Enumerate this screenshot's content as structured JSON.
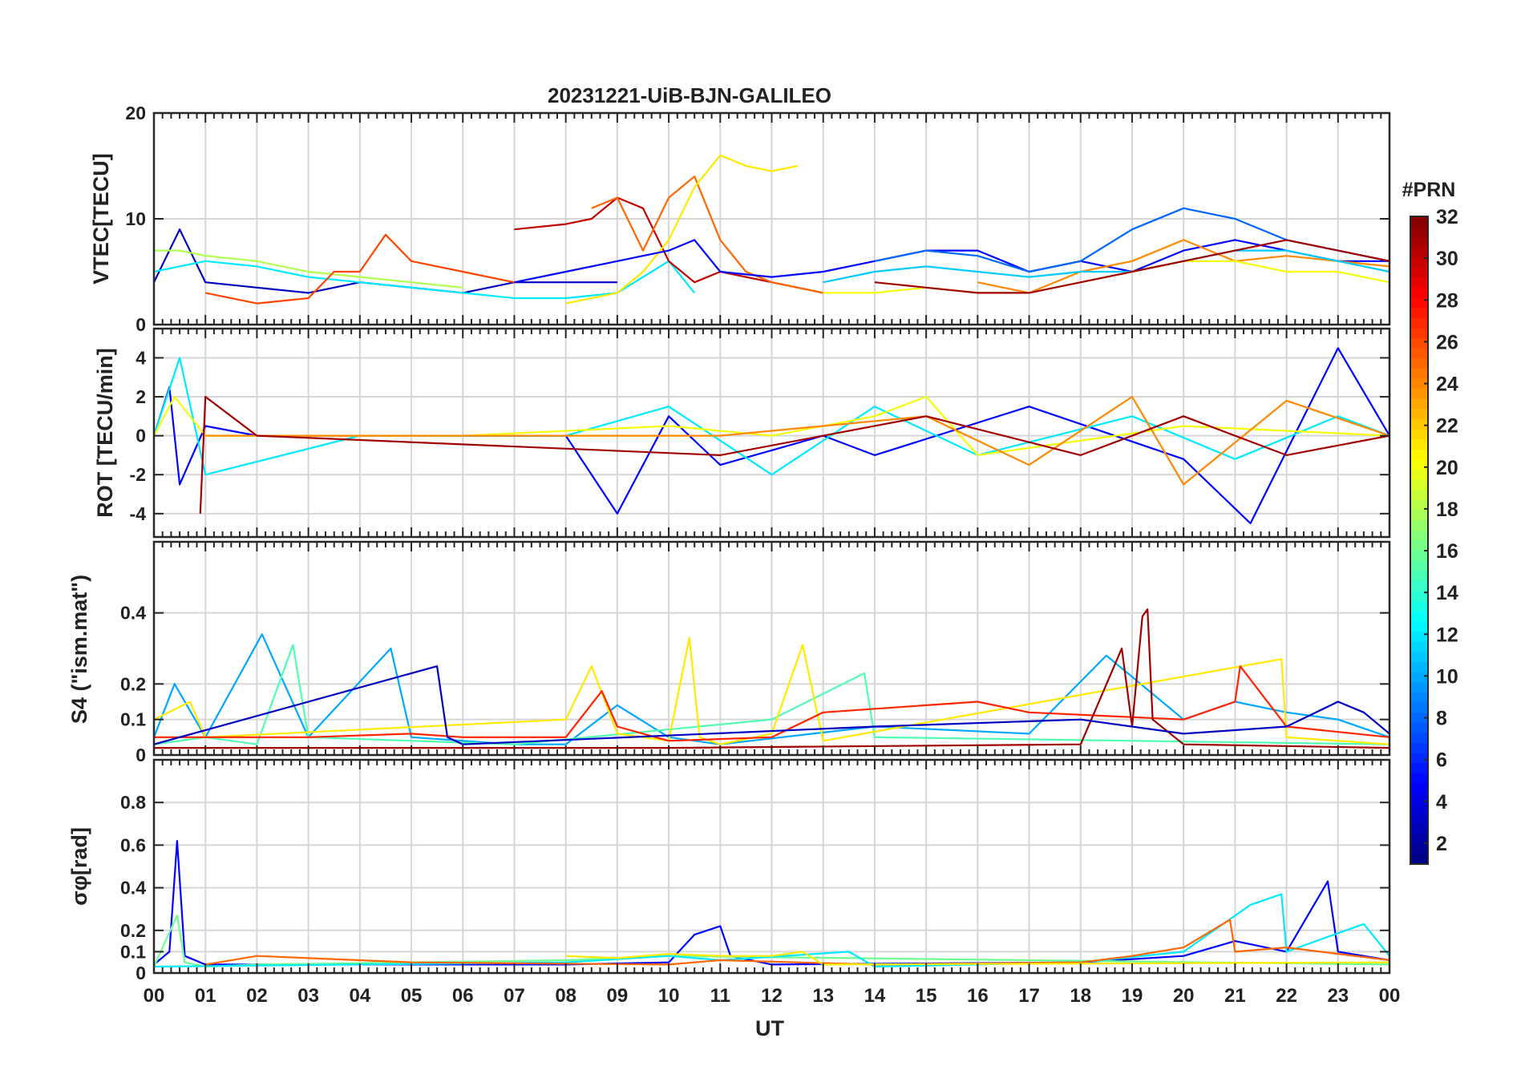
{
  "chart_data": {
    "type": "line",
    "title": "20231221-UiB-BJN-GALILEO",
    "xlabel": "UT",
    "x_ticks": [
      "00",
      "01",
      "02",
      "03",
      "04",
      "05",
      "06",
      "07",
      "08",
      "09",
      "10",
      "11",
      "12",
      "13",
      "14",
      "15",
      "16",
      "17",
      "18",
      "19",
      "20",
      "21",
      "22",
      "23",
      "00"
    ],
    "xlim": [
      0,
      24
    ],
    "colorbar": {
      "label": "#PRN",
      "range": [
        1,
        32
      ],
      "ticks": [
        "2",
        "4",
        "6",
        "8",
        "10",
        "12",
        "14",
        "16",
        "18",
        "20",
        "22",
        "24",
        "26",
        "28",
        "30",
        "32"
      ],
      "colormap": "jet"
    },
    "panels": [
      {
        "id": "vtec",
        "ylabel": "VTEC[TECU]",
        "ylim": [
          0,
          20
        ],
        "yticks": [
          "0",
          "10",
          "20"
        ],
        "series": [
          {
            "prn": 3,
            "x": [
              0,
              0.5,
              1,
              2,
              3,
              4,
              5,
              6,
              7,
              8,
              9
            ],
            "y": [
              4,
              9,
              4,
              3.5,
              3,
              4,
              3.5,
              3,
              4,
              4,
              4
            ]
          },
          {
            "prn": 12,
            "x": [
              0,
              1,
              2,
              3,
              4,
              5,
              6,
              7,
              8,
              9,
              10,
              10.5
            ],
            "y": [
              5,
              6,
              5.5,
              4.5,
              4,
              3.5,
              3,
              2.5,
              2.5,
              3,
              6,
              3
            ]
          },
          {
            "prn": 18,
            "x": [
              0,
              0.5,
              1,
              2,
              3,
              4,
              5,
              6
            ],
            "y": [
              7,
              7,
              6.5,
              6,
              5,
              4.5,
              4,
              3.5
            ]
          },
          {
            "prn": 26,
            "x": [
              1,
              2,
              3,
              3.5,
              4,
              4.5,
              5,
              6,
              7
            ],
            "y": [
              3,
              2,
              2.5,
              5,
              5,
              8.5,
              6,
              5,
              4
            ]
          },
          {
            "prn": 30,
            "x": [
              7,
              8,
              8.5,
              9,
              9.5,
              10,
              10.5,
              11,
              12,
              13
            ],
            "y": [
              9,
              9.5,
              10,
              12,
              11,
              6,
              4,
              5,
              4,
              3
            ]
          },
          {
            "prn": 25,
            "x": [
              8.5,
              9,
              9.5,
              10,
              10.5,
              11,
              11.5,
              12,
              13
            ],
            "y": [
              11,
              12,
              7,
              12,
              14,
              8,
              5,
              4,
              3
            ]
          },
          {
            "prn": 21,
            "x": [
              8,
              9,
              9.5,
              10,
              10.5,
              11,
              11.5,
              12,
              12.5
            ],
            "y": [
              2,
              3,
              5,
              8,
              13,
              16,
              15,
              14.5,
              15
            ]
          },
          {
            "prn": 5,
            "x": [
              7,
              8,
              9,
              10,
              10.5,
              11,
              12,
              13,
              14,
              15,
              16,
              17,
              18,
              19,
              20,
              21,
              22,
              23,
              24
            ],
            "y": [
              4,
              5,
              6,
              7,
              8,
              5,
              4.5,
              5,
              6,
              7,
              7,
              5,
              6,
              5,
              7,
              8,
              7,
              6,
              6
            ]
          },
          {
            "prn": 8,
            "x": [
              14,
              15,
              16,
              17,
              18,
              19,
              20,
              21,
              22,
              23,
              24
            ],
            "y": [
              6,
              7,
              6.5,
              5,
              6,
              9,
              11,
              10,
              8,
              7,
              6
            ]
          },
          {
            "prn": 24,
            "x": [
              16,
              17,
              18,
              19,
              20,
              21,
              22,
              23,
              24
            ],
            "y": [
              4,
              3,
              5,
              6,
              8,
              6,
              6.5,
              6,
              5.5
            ]
          },
          {
            "prn": 11,
            "x": [
              13,
              14,
              15,
              16,
              17,
              18,
              19,
              20,
              21,
              22,
              23,
              24
            ],
            "y": [
              4,
              5,
              5.5,
              5,
              4.5,
              5,
              5,
              6,
              7,
              7,
              6,
              5
            ]
          },
          {
            "prn": 20,
            "x": [
              13,
              14,
              15,
              16,
              17,
              18,
              19,
              20,
              21,
              22,
              23,
              24
            ],
            "y": [
              3,
              3,
              3.5,
              3,
              3,
              4,
              5,
              6,
              6,
              5,
              5,
              4
            ]
          },
          {
            "prn": 31,
            "x": [
              14,
              15,
              16,
              17,
              18,
              19,
              20,
              21,
              22,
              23,
              24
            ],
            "y": [
              4,
              3.5,
              3,
              3,
              4,
              5,
              6,
              7,
              8,
              7,
              6
            ]
          }
        ]
      },
      {
        "id": "rot",
        "ylabel": "ROT [TECU/min]",
        "ylim": [
          -5.2,
          5.5
        ],
        "yticks": [
          "-4",
          "-2",
          "0",
          "2",
          "4"
        ],
        "series": [
          {
            "prn": 5,
            "x": [
              0,
              0.3,
              0.5,
              1,
              2,
              5,
              8,
              9,
              10,
              11,
              13,
              14,
              17,
              20,
              21.3,
              23,
              24
            ],
            "y": [
              0,
              2.5,
              -2.5,
              0.5,
              0,
              0,
              0,
              -4,
              1,
              -1.5,
              0,
              -1,
              1.5,
              -1.2,
              -4.5,
              4.5,
              0
            ]
          },
          {
            "prn": 12,
            "x": [
              0,
              0.5,
              1,
              4,
              8,
              10,
              12,
              14,
              16,
              19,
              21,
              23,
              24
            ],
            "y": [
              0,
              4,
              -2,
              0,
              0,
              1.5,
              -2,
              1.5,
              -1,
              1,
              -1.2,
              1,
              0
            ]
          },
          {
            "prn": 20,
            "x": [
              0,
              0.4,
              1,
              6,
              10,
              12,
              14,
              15,
              16,
              20,
              24
            ],
            "y": [
              0,
              2,
              0,
              0,
              0.5,
              0,
              1,
              2,
              -1,
              0.5,
              0
            ]
          },
          {
            "prn": 24,
            "x": [
              1,
              6,
              11,
              15,
              17,
              19,
              20,
              22,
              24
            ],
            "y": [
              0,
              0,
              0,
              1,
              -1.5,
              2,
              -2.5,
              1.8,
              0
            ]
          },
          {
            "prn": 31,
            "x": [
              0.9,
              1,
              2,
              11,
              15,
              18,
              20,
              22,
              24
            ],
            "y": [
              -4,
              2,
              0,
              -1,
              1,
              -1,
              1,
              -1,
              0
            ]
          }
        ]
      },
      {
        "id": "s4",
        "ylabel": "S4 (\"ism.mat\")",
        "ylim": [
          0,
          0.6
        ],
        "yticks": [
          "0",
          "0.1",
          "0.2",
          "0.4"
        ],
        "series": [
          {
            "prn": 10,
            "x": [
              0,
              0.4,
              1,
              2.1,
              3,
              4.6,
              5,
              7,
              8,
              9,
              10,
              11,
              14,
              17,
              18.5,
              20,
              21,
              22,
              23,
              24
            ],
            "y": [
              0.05,
              0.2,
              0.05,
              0.34,
              0.05,
              0.3,
              0.05,
              0.03,
              0.03,
              0.14,
              0.05,
              0.03,
              0.08,
              0.06,
              0.28,
              0.1,
              0.15,
              0.12,
              0.1,
              0.05
            ]
          },
          {
            "prn": 15,
            "x": [
              0,
              1,
              2,
              2.7,
              3,
              7,
              12,
              13.8,
              14,
              24
            ],
            "y": [
              0.03,
              0.05,
              0.03,
              0.31,
              0.05,
              0.03,
              0.1,
              0.23,
              0.05,
              0.03
            ]
          },
          {
            "prn": 21,
            "x": [
              0,
              0.7,
              1,
              8,
              8.5,
              9,
              10,
              10.4,
              10.6,
              11,
              12,
              12.6,
              13,
              21.9,
              22,
              24
            ],
            "y": [
              0.1,
              0.15,
              0.05,
              0.1,
              0.25,
              0.06,
              0.04,
              0.33,
              0.05,
              0.03,
              0.06,
              0.31,
              0.04,
              0.27,
              0.05,
              0.03
            ]
          },
          {
            "prn": 27,
            "x": [
              0,
              2,
              3,
              5,
              6,
              8,
              8.7,
              9,
              10,
              12,
              13,
              16,
              17,
              20,
              21,
              21.1,
              22,
              24
            ],
            "y": [
              0.05,
              0.05,
              0.05,
              0.06,
              0.05,
              0.05,
              0.18,
              0.08,
              0.04,
              0.05,
              0.12,
              0.15,
              0.12,
              0.1,
              0.15,
              0.25,
              0.08,
              0.05
            ]
          },
          {
            "prn": 31,
            "x": [
              0,
              10,
              18,
              18.8,
              19,
              19.2,
              19.3,
              19.4,
              20,
              24
            ],
            "y": [
              0.02,
              0.02,
              0.03,
              0.3,
              0.08,
              0.39,
              0.41,
              0.1,
              0.03,
              0.02
            ]
          },
          {
            "prn": 3,
            "x": [
              0,
              5.5,
              5.7,
              6,
              14,
              18,
              20,
              22,
              23,
              23.5,
              24
            ],
            "y": [
              0.03,
              0.25,
              0.05,
              0.03,
              0.08,
              0.1,
              0.06,
              0.08,
              0.15,
              0.12,
              0.06
            ]
          }
        ]
      },
      {
        "id": "sigma_phi",
        "ylabel": "σφ[rad]",
        "ylim": [
          0,
          1
        ],
        "yticks": [
          "0",
          "0.1",
          "0.2",
          "0.4",
          "0.6",
          "0.8"
        ],
        "series": [
          {
            "prn": 5,
            "x": [
              0,
              0.3,
              0.45,
              0.6,
              1,
              2,
              8,
              10,
              10.5,
              11,
              11.2,
              12,
              18,
              20,
              21,
              22,
              22.8,
              23,
              24
            ],
            "y": [
              0.04,
              0.1,
              0.62,
              0.08,
              0.04,
              0.04,
              0.04,
              0.05,
              0.18,
              0.22,
              0.08,
              0.04,
              0.05,
              0.08,
              0.15,
              0.1,
              0.43,
              0.1,
              0.06
            ]
          },
          {
            "prn": 16,
            "x": [
              0,
              0.45,
              0.6,
              1,
              2,
              8,
              10,
              24
            ],
            "y": [
              0.03,
              0.27,
              0.05,
              0.03,
              0.04,
              0.06,
              0.08,
              0.04
            ]
          },
          {
            "prn": 12,
            "x": [
              0,
              8,
              10,
              11,
              13.5,
              14,
              18,
              20,
              21.3,
              21.9,
              22,
              23.5,
              24
            ],
            "y": [
              0.03,
              0.05,
              0.08,
              0.06,
              0.1,
              0.03,
              0.05,
              0.1,
              0.32,
              0.37,
              0.1,
              0.23,
              0.08
            ]
          },
          {
            "prn": 25,
            "x": [
              1,
              2,
              5,
              10,
              11,
              14,
              18,
              19,
              20,
              20.9,
              21,
              22,
              24
            ],
            "y": [
              0.04,
              0.08,
              0.05,
              0.04,
              0.06,
              0.04,
              0.05,
              0.08,
              0.12,
              0.25,
              0.1,
              0.12,
              0.06
            ]
          },
          {
            "prn": 21,
            "x": [
              8,
              9,
              10,
              11,
              12,
              12.6,
              13,
              24
            ],
            "y": [
              0.08,
              0.07,
              0.09,
              0.08,
              0.08,
              0.1,
              0.04,
              0.05
            ]
          }
        ]
      }
    ]
  }
}
